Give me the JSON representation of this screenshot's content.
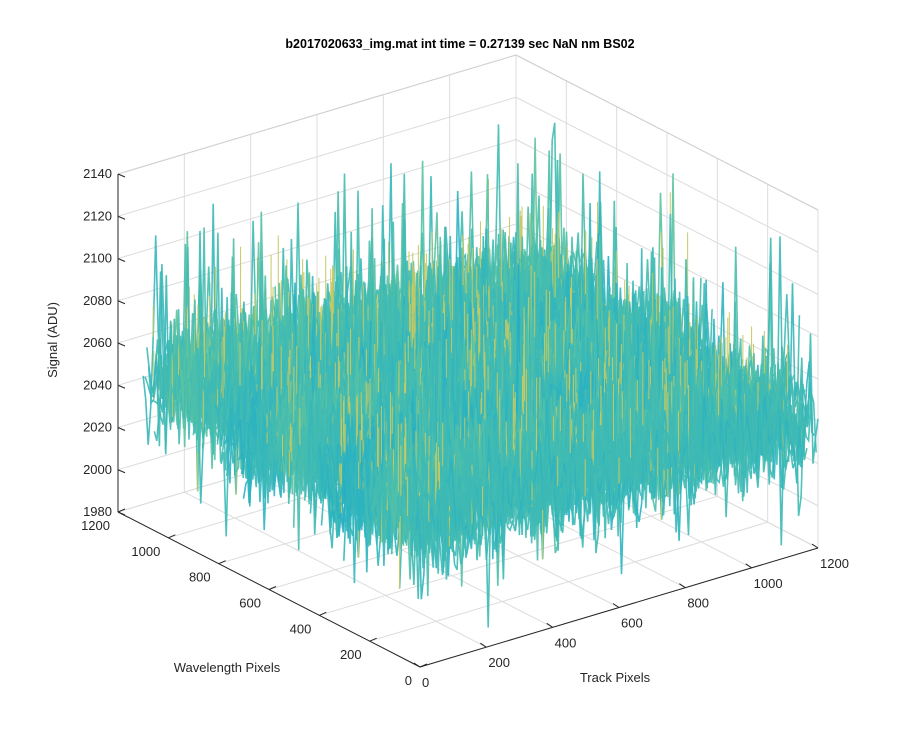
{
  "chart_data": {
    "type": "surface3d",
    "title": "b2017020633_img.mat int time = 0.27139 sec  NaN nm BS02",
    "xlabel": "Track Pixels",
    "ylabel": "Wavelength Pixels",
    "zlabel": "Signal (ADU)",
    "xlim": [
      0,
      1200
    ],
    "ylim": [
      0,
      1200
    ],
    "zlim": [
      1980,
      2140
    ],
    "x_ticks": [
      "0",
      "200",
      "400",
      "600",
      "800",
      "1000",
      "1200"
    ],
    "y_ticks": [
      "0",
      "200",
      "400",
      "600",
      "800",
      "1000",
      "1200"
    ],
    "z_ticks": [
      "1980",
      "2000",
      "2020",
      "2040",
      "2060",
      "2080",
      "2100",
      "2120",
      "2140"
    ],
    "grid": true,
    "colormap": [
      "#0072bd",
      "#1496c8",
      "#2bb3c2",
      "#56c2a4",
      "#9cc97e",
      "#d2c95a"
    ],
    "surface": {
      "x_range": [
        0,
        1200
      ],
      "y_range": [
        0,
        1100
      ],
      "mean_signal": 2045,
      "typical_min": 1995,
      "typical_max": 2095,
      "max_spike": 2125
    }
  }
}
